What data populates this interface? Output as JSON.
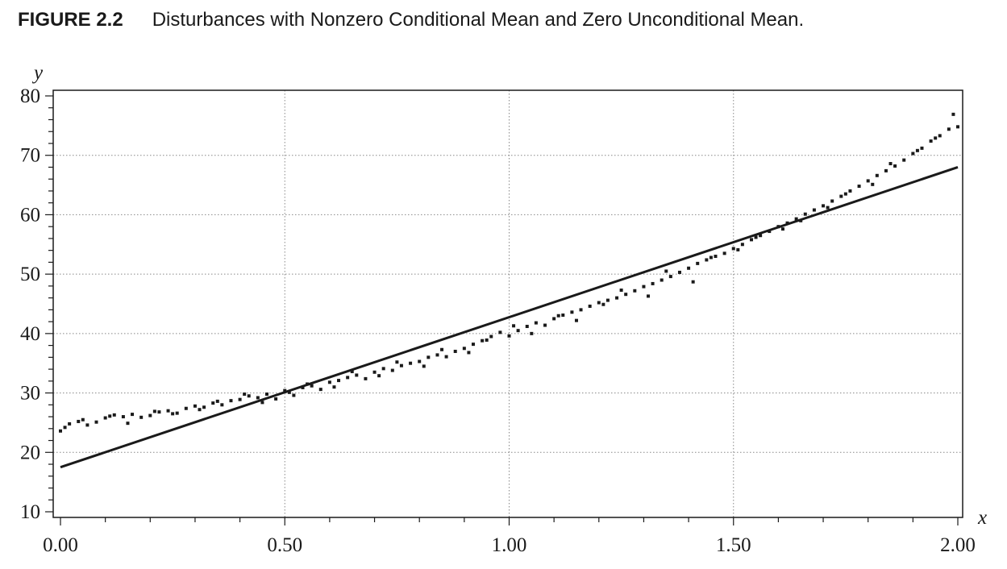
{
  "figure": {
    "label": "FIGURE 2.2",
    "title": "Disturbances with Nonzero Conditional Mean and Zero Unconditional Mean."
  },
  "chart_data": {
    "type": "scatter",
    "title": "Disturbances with Nonzero Conditional Mean and Zero Unconditional Mean.",
    "xlabel": "x",
    "ylabel": "y",
    "xlim": [
      0,
      2
    ],
    "ylim": [
      10,
      80
    ],
    "xticks": [
      0,
      0.5,
      1,
      1.5,
      2
    ],
    "xtick_labels": [
      "0.00",
      "0.50",
      "1.00",
      "1.50",
      "2.00"
    ],
    "yticks": [
      10,
      20,
      30,
      40,
      50,
      60,
      70,
      80
    ],
    "ytick_labels": [
      "10",
      "20",
      "30",
      "40",
      "50",
      "60",
      "70",
      "80"
    ],
    "grid": true,
    "colors": {
      "points": "#1a1a1a",
      "line": "#1a1a1a",
      "grid": "#888888"
    },
    "line": {
      "x": [
        0,
        2
      ],
      "y": [
        17.5,
        68
      ]
    },
    "points": {
      "x": [
        0.0,
        0.02,
        0.04,
        0.06,
        0.08,
        0.1,
        0.12,
        0.14,
        0.16,
        0.18,
        0.2,
        0.22,
        0.24,
        0.26,
        0.28,
        0.3,
        0.32,
        0.34,
        0.36,
        0.38,
        0.4,
        0.42,
        0.44,
        0.46,
        0.48,
        0.5,
        0.52,
        0.54,
        0.56,
        0.58,
        0.6,
        0.62,
        0.64,
        0.66,
        0.68,
        0.7,
        0.72,
        0.74,
        0.76,
        0.78,
        0.8,
        0.82,
        0.84,
        0.86,
        0.88,
        0.9,
        0.92,
        0.94,
        0.96,
        0.98,
        1.0,
        1.02,
        1.04,
        1.06,
        1.08,
        1.1,
        1.12,
        1.14,
        1.16,
        1.18,
        1.2,
        1.22,
        1.24,
        1.26,
        1.28,
        1.3,
        1.32,
        1.34,
        1.36,
        1.38,
        1.4,
        1.42,
        1.44,
        1.46,
        1.48,
        1.5,
        1.52,
        1.54,
        1.56,
        1.58,
        1.6,
        1.62,
        1.64,
        1.66,
        1.68,
        1.7,
        1.72,
        1.74,
        1.76,
        1.78,
        1.8,
        1.82,
        1.84,
        1.86,
        1.88,
        1.9,
        1.92,
        1.94,
        1.96,
        1.98,
        2.0,
        0.01,
        0.05,
        0.11,
        0.15,
        0.21,
        0.25,
        0.31,
        0.35,
        0.41,
        0.45,
        0.51,
        0.55,
        0.61,
        0.65,
        0.71,
        0.75,
        0.81,
        0.85,
        0.91,
        0.95,
        1.01,
        1.05,
        1.11,
        1.15,
        1.21,
        1.25,
        1.31,
        1.35,
        1.41,
        1.45,
        1.51,
        1.55,
        1.61,
        1.65,
        1.71,
        1.75,
        1.81,
        1.85,
        1.91,
        1.95,
        1.99
      ],
      "y": [
        23.6,
        24.8,
        25.2,
        24.6,
        25.1,
        25.8,
        26.3,
        26.0,
        26.4,
        25.9,
        26.2,
        26.8,
        27.0,
        26.6,
        27.4,
        27.8,
        27.6,
        28.3,
        28.0,
        28.7,
        28.9,
        29.5,
        29.2,
        29.8,
        29.0,
        30.4,
        29.6,
        30.9,
        31.2,
        30.6,
        31.8,
        32.1,
        32.6,
        33.0,
        32.4,
        33.5,
        34.1,
        33.8,
        34.6,
        35.0,
        35.3,
        36.0,
        36.4,
        36.1,
        37.0,
        37.5,
        38.2,
        38.8,
        39.5,
        40.2,
        39.6,
        40.5,
        41.2,
        41.8,
        41.4,
        42.5,
        43.1,
        43.6,
        44.0,
        44.6,
        45.2,
        45.6,
        46.0,
        46.6,
        47.2,
        47.9,
        48.4,
        49.0,
        49.6,
        50.3,
        51.0,
        51.8,
        52.4,
        53.0,
        53.5,
        54.3,
        55.0,
        55.8,
        56.5,
        57.2,
        58.0,
        58.6,
        59.3,
        60.1,
        60.8,
        61.5,
        62.3,
        63.1,
        64.0,
        64.8,
        65.7,
        66.6,
        67.4,
        68.2,
        69.2,
        70.3,
        71.2,
        72.4,
        73.3,
        74.4,
        74.8,
        24.2,
        25.5,
        26.1,
        24.9,
        26.9,
        26.5,
        27.2,
        28.6,
        29.8,
        28.4,
        30.1,
        31.5,
        31.0,
        33.6,
        32.9,
        35.2,
        34.5,
        37.3,
        36.8,
        38.9,
        41.3,
        40.0,
        43.0,
        42.2,
        44.9,
        47.3,
        46.3,
        50.5,
        48.7,
        52.8,
        54.1,
        56.2,
        57.6,
        59.0,
        61.2,
        63.5,
        65.1,
        68.6,
        70.8,
        72.9,
        76.9
      ]
    }
  }
}
